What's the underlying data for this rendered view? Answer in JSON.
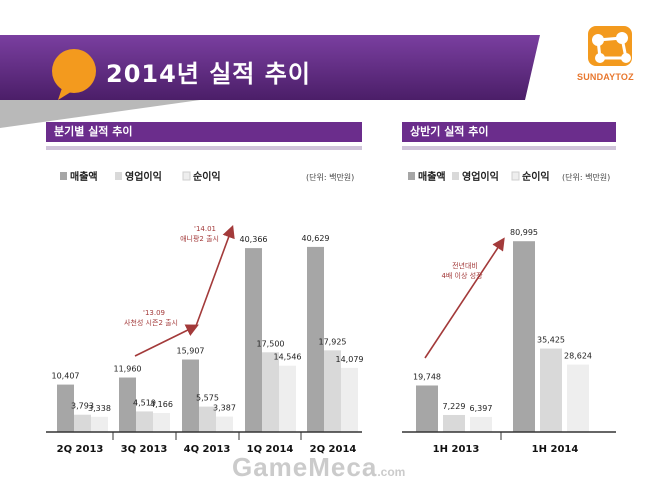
{
  "header": {
    "title": "2014년 실적 추이",
    "brand": "SUNDAYTOZ",
    "colors": {
      "purple": "#6b2d8c",
      "orange": "#f39a1e",
      "brand_orange": "#e8772e"
    }
  },
  "watermark": {
    "text": "GameMeca",
    "suffix": ".com"
  },
  "chart_data": [
    {
      "type": "bar",
      "title": "분기별 실적 추이",
      "unit_label": "(단위: 백만원)",
      "categories": [
        "2Q 2013",
        "3Q 2013",
        "4Q 2013",
        "1Q 2014",
        "2Q 2014"
      ],
      "series": [
        {
          "name": "매출액",
          "color": "#a6a6a6",
          "values": [
            10407,
            11960,
            15907,
            40366,
            40629
          ]
        },
        {
          "name": "영업이익",
          "color": "#d9d9d9",
          "values": [
            3793,
            4519,
            5575,
            17500,
            17925
          ]
        },
        {
          "name": "순이익",
          "color": "#eeeeee",
          "values": [
            3338,
            4166,
            3387,
            14546,
            14079
          ]
        }
      ],
      "data_labels": [
        [
          "10,407",
          "11,960",
          "15,907",
          "40,366",
          "40,629"
        ],
        [
          "3,793",
          "4,519",
          "5,575",
          "17,500",
          "17,925"
        ],
        [
          "3,338",
          "4,166",
          "3,387",
          "14,546",
          "14,079"
        ]
      ],
      "ylim": [
        0,
        45000
      ],
      "annotations": [
        {
          "lines": [
            "'13.09",
            "사천성 시즌2 출시"
          ]
        },
        {
          "lines": [
            "'14.01",
            "애니팡2 출시"
          ]
        }
      ]
    },
    {
      "type": "bar",
      "title": "상반기 실적 추이",
      "unit_label": "(단위: 백만원)",
      "categories": [
        "1H 2013",
        "1H 2014"
      ],
      "series": [
        {
          "name": "매출액",
          "color": "#a6a6a6",
          "values": [
            19748,
            80995
          ]
        },
        {
          "name": "영업이익",
          "color": "#d9d9d9",
          "values": [
            7229,
            35425
          ]
        },
        {
          "name": "순이익",
          "color": "#eeeeee",
          "values": [
            6397,
            28624
          ]
        }
      ],
      "data_labels": [
        [
          "19,748",
          "80,995"
        ],
        [
          "7,229",
          "35,425"
        ],
        [
          "6,397",
          "28,624"
        ]
      ],
      "ylim": [
        0,
        90000
      ],
      "annotations": [
        {
          "lines": [
            "전년대비",
            "4배 이상 성장"
          ]
        }
      ]
    }
  ]
}
